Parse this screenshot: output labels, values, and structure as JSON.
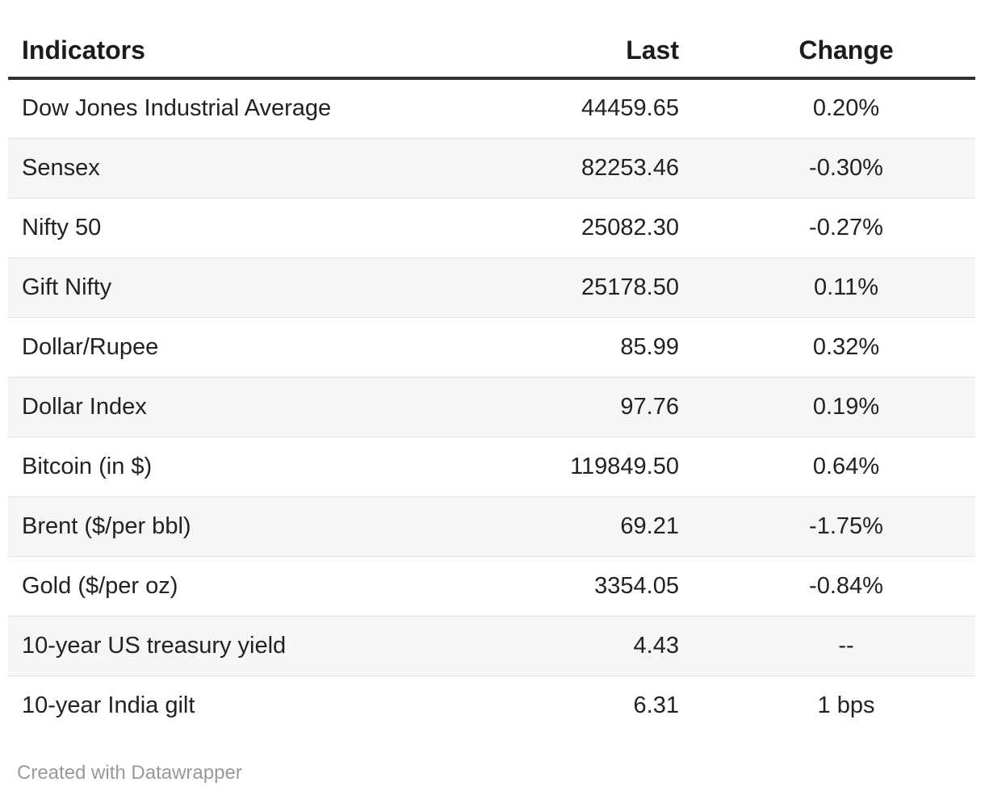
{
  "table": {
    "columns": [
      {
        "label": "Indicators",
        "align": "left"
      },
      {
        "label": "Last",
        "align": "right"
      },
      {
        "label": "Change",
        "align": "center"
      }
    ],
    "rows": [
      {
        "indicator": "Dow Jones Industrial Average",
        "last": "44459.65",
        "change": "0.20%"
      },
      {
        "indicator": "Sensex",
        "last": "82253.46",
        "change": "-0.30%"
      },
      {
        "indicator": "Nifty 50",
        "last": "25082.30",
        "change": "-0.27%"
      },
      {
        "indicator": "Gift Nifty",
        "last": "25178.50",
        "change": "0.11%"
      },
      {
        "indicator": "Dollar/Rupee",
        "last": "85.99",
        "change": "0.32%"
      },
      {
        "indicator": "Dollar Index",
        "last": "97.76",
        "change": "0.19%"
      },
      {
        "indicator": "Bitcoin (in $)",
        "last": "119849.50",
        "change": "0.64%"
      },
      {
        "indicator": "Brent ($/per bbl)",
        "last": "69.21",
        "change": "-1.75%"
      },
      {
        "indicator": "Gold ($/per oz)",
        "last": "3354.05",
        "change": "-0.84%"
      },
      {
        "indicator": "10-year US treasury yield",
        "last": "4.43",
        "change": "--"
      },
      {
        "indicator": "10-year India gilt",
        "last": "6.31",
        "change": "1 bps"
      }
    ]
  },
  "footer": {
    "attribution": "Created with Datawrapper"
  },
  "colors": {
    "zebra_row": "#f6f6f6",
    "row_divider": "#e2e2e2",
    "header_rule": "#333333",
    "text": "#222222",
    "footer_text": "#999999"
  },
  "chart_data": {
    "type": "table",
    "title": "",
    "columns": [
      "Indicators",
      "Last",
      "Change"
    ],
    "rows": [
      [
        "Dow Jones Industrial Average",
        44459.65,
        "0.20%"
      ],
      [
        "Sensex",
        82253.46,
        "-0.30%"
      ],
      [
        "Nifty 50",
        25082.3,
        "-0.27%"
      ],
      [
        "Gift Nifty",
        25178.5,
        "0.11%"
      ],
      [
        "Dollar/Rupee",
        85.99,
        "0.32%"
      ],
      [
        "Dollar Index",
        97.76,
        "0.19%"
      ],
      [
        "Bitcoin (in $)",
        119849.5,
        "0.64%"
      ],
      [
        "Brent ($/per bbl)",
        69.21,
        "-1.75%"
      ],
      [
        "Gold ($/per oz)",
        3354.05,
        "-0.84%"
      ],
      [
        "10-year US treasury yield",
        4.43,
        "--"
      ],
      [
        "10-year India gilt",
        6.31,
        "1 bps"
      ]
    ],
    "layout": {
      "zebra_striping": true,
      "column_alignments": [
        "left",
        "right",
        "center"
      ],
      "header_rule": true
    }
  }
}
